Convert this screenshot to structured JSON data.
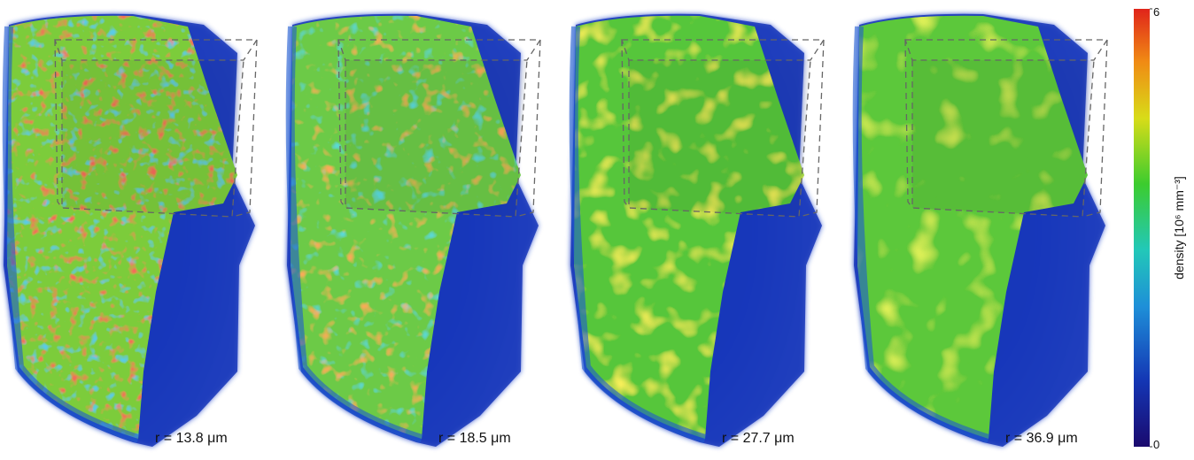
{
  "panels": [
    {
      "label": "r = 13.8 μm"
    },
    {
      "label": "r = 18.5 μm"
    },
    {
      "label": "r = 27.7 μm"
    },
    {
      "label": "r = 36.9 μm"
    }
  ],
  "colorbar": {
    "label": "density [10⁶ mm⁻³]",
    "lim": [
      0,
      6
    ],
    "ticks": [
      0,
      6
    ]
  }
}
